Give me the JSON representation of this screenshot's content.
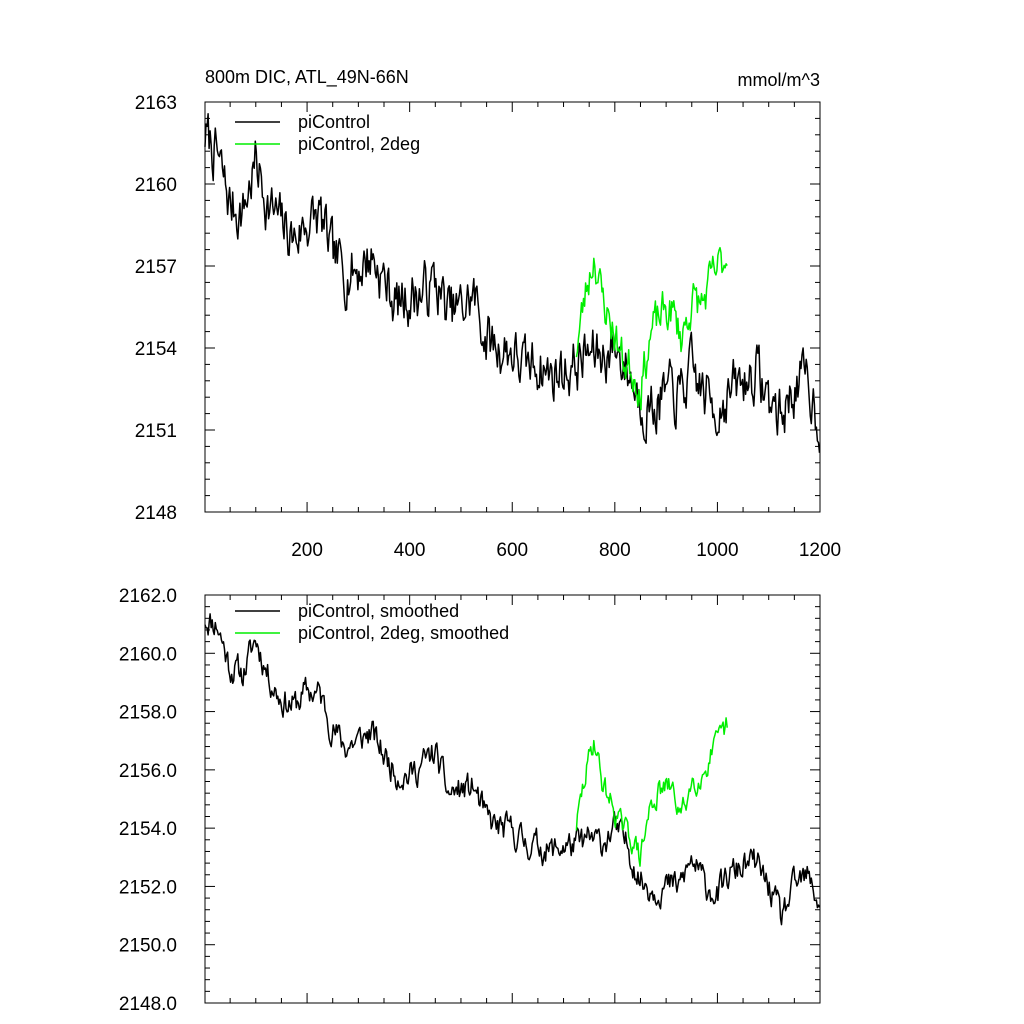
{
  "title_left": "800m DIC, ATL_49N-66N",
  "title_right": "mmol/m^3",
  "colors": {
    "series_black": "#000000",
    "series_green": "#00ee00",
    "axis": "#000000"
  },
  "chart_data": [
    {
      "type": "line",
      "title": "800m DIC, ATL_49N-66N",
      "units": "mmol/m^3",
      "xlim": [
        1,
        1200
      ],
      "ylim": [
        2148,
        2163
      ],
      "xticks": [
        200,
        400,
        600,
        800,
        1000,
        1200
      ],
      "yticks": [
        2148,
        2151,
        2154,
        2157,
        2160,
        2163
      ],
      "ytick_labels": [
        "2148",
        "2151",
        "2154",
        "2157",
        "2160",
        "2163"
      ],
      "legend": "top-left",
      "grid": false,
      "series": [
        {
          "name": "piControl",
          "color": "#000000",
          "noise": 0.85,
          "seed": 7,
          "x": [
            1,
            25,
            50,
            75,
            100,
            125,
            150,
            175,
            200,
            225,
            250,
            275,
            300,
            325,
            350,
            375,
            400,
            425,
            450,
            475,
            500,
            525,
            550,
            575,
            600,
            625,
            650,
            675,
            700,
            725,
            750,
            775,
            800,
            825,
            850,
            875,
            900,
            925,
            950,
            975,
            1000,
            1025,
            1050,
            1075,
            1100,
            1125,
            1150,
            1175,
            1200
          ],
          "y": [
            2161.8,
            2161.0,
            2159.2,
            2159.0,
            2160.8,
            2159.2,
            2158.5,
            2158.0,
            2158.6,
            2158.8,
            2157.3,
            2156.8,
            2156.9,
            2157.4,
            2156.5,
            2155.6,
            2155.9,
            2156.0,
            2156.4,
            2155.3,
            2155.4,
            2155.9,
            2154.3,
            2154.0,
            2153.9,
            2153.2,
            2153.5,
            2153.0,
            2153.2,
            2153.4,
            2153.8,
            2153.7,
            2154.1,
            2153.2,
            2152.1,
            2151.8,
            2152.3,
            2152.2,
            2153.1,
            2152.3,
            2151.8,
            2152.4,
            2152.7,
            2153.2,
            2152.1,
            2151.5,
            2152.6,
            2152.8,
            2151.3
          ]
        },
        {
          "name": "piControl, 2deg",
          "color": "#00ee00",
          "noise": 0.65,
          "seed": 23,
          "x": [
            725,
            745,
            760,
            775,
            795,
            815,
            835,
            850,
            870,
            890,
            910,
            930,
            950,
            970,
            990,
            1005,
            1020
          ],
          "y": [
            2154.0,
            2156.2,
            2157.5,
            2155.8,
            2154.8,
            2153.6,
            2153.2,
            2152.6,
            2154.5,
            2155.2,
            2155.4,
            2154.4,
            2155.7,
            2155.6,
            2156.5,
            2157.0,
            2157.4
          ]
        }
      ]
    },
    {
      "type": "line",
      "xlim": [
        1,
        1200
      ],
      "ylim": [
        2148,
        2162
      ],
      "xticks": [
        200,
        400,
        600,
        800,
        1000,
        1200
      ],
      "yticks": [
        2148,
        2150,
        2152,
        2154,
        2156,
        2158,
        2160,
        2162
      ],
      "ytick_labels": [
        "2148.0",
        "2150.0",
        "2152.0",
        "2154.0",
        "2156.0",
        "2158.0",
        "2160.0",
        "2162.0"
      ],
      "legend": "top-left",
      "grid": false,
      "series": [
        {
          "name": "piControl, smoothed",
          "color": "#000000",
          "noise": 0.42,
          "seed": 11,
          "x": [
            1,
            25,
            50,
            75,
            100,
            125,
            150,
            175,
            200,
            225,
            250,
            275,
            300,
            325,
            350,
            375,
            400,
            425,
            450,
            475,
            500,
            525,
            550,
            575,
            600,
            625,
            650,
            675,
            700,
            725,
            750,
            775,
            800,
            825,
            850,
            875,
            900,
            925,
            950,
            975,
            1000,
            1025,
            1050,
            1075,
            1100,
            1125,
            1150,
            1175,
            1200
          ],
          "y": [
            2161.2,
            2161.0,
            2159.5,
            2159.3,
            2160.5,
            2159.2,
            2158.4,
            2158.2,
            2158.7,
            2158.6,
            2157.4,
            2156.8,
            2157.0,
            2157.3,
            2156.5,
            2155.9,
            2155.8,
            2156.2,
            2156.6,
            2155.2,
            2155.3,
            2155.4,
            2154.3,
            2154.0,
            2153.9,
            2153.5,
            2153.4,
            2153.2,
            2153.4,
            2153.4,
            2153.6,
            2153.5,
            2154.0,
            2153.4,
            2152.2,
            2151.9,
            2152.0,
            2152.0,
            2152.9,
            2152.1,
            2151.7,
            2152.4,
            2152.7,
            2152.8,
            2152.0,
            2150.9,
            2152.0,
            2152.3,
            2151.4
          ]
        },
        {
          "name": "piControl, 2deg, smoothed",
          "color": "#00ee00",
          "noise": 0.35,
          "seed": 29,
          "x": [
            725,
            745,
            760,
            775,
            795,
            815,
            835,
            850,
            870,
            890,
            910,
            930,
            950,
            970,
            990,
            1005,
            1020
          ],
          "y": [
            2154.1,
            2156.0,
            2157.1,
            2155.6,
            2154.8,
            2154.0,
            2153.6,
            2153.0,
            2154.8,
            2155.3,
            2155.4,
            2154.4,
            2155.6,
            2155.8,
            2156.6,
            2157.0,
            2157.5
          ]
        }
      ]
    }
  ]
}
